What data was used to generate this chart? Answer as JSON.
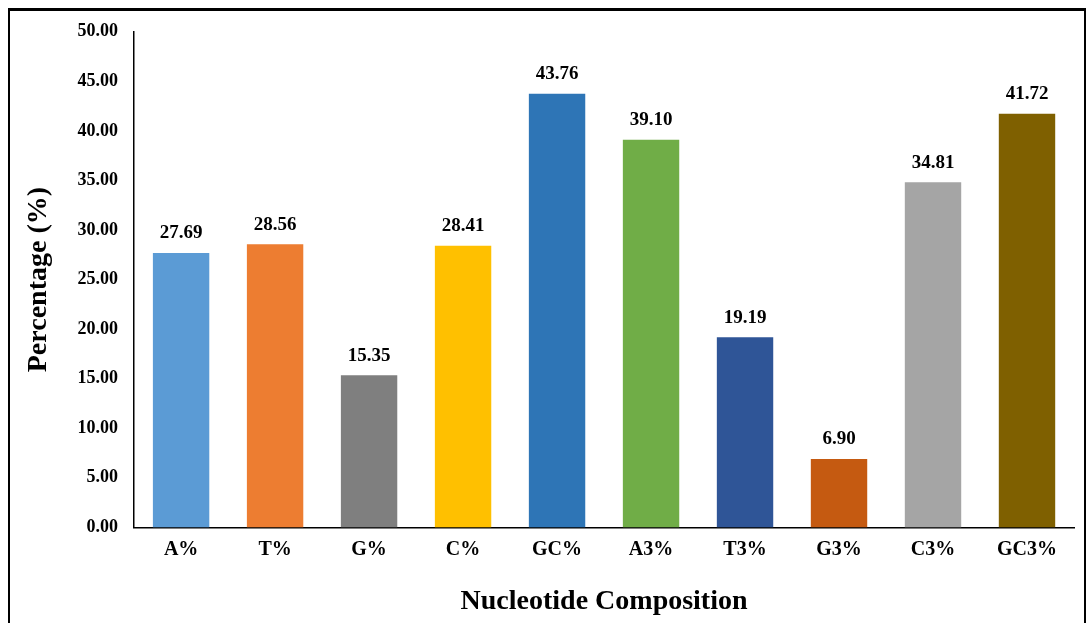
{
  "chart_data": {
    "type": "bar",
    "xlabel": "Nucleotide Composition",
    "ylabel": "Percentage (%)",
    "categories": [
      "A%",
      "T%",
      "G%",
      "C%",
      "GC%",
      "A3%",
      "T3%",
      "G3%",
      "C3%",
      "GC3%"
    ],
    "values": [
      27.69,
      28.56,
      15.35,
      28.41,
      43.76,
      39.1,
      19.19,
      6.9,
      34.81,
      41.72
    ],
    "value_labels": [
      "27.69",
      "28.56",
      "15.35",
      "28.41",
      "43.76",
      "39.10",
      "19.19",
      "6.90",
      "34.81",
      "41.72"
    ],
    "colors": [
      "#5b9bd5",
      "#ed7d31",
      "#7f7f7f",
      "#ffc000",
      "#2e75b6",
      "#70ad47",
      "#2f5597",
      "#c55a11",
      "#a5a5a5",
      "#7f6000"
    ],
    "ylim": [
      0,
      50
    ],
    "yticks": [
      {
        "value": 0,
        "label": "0.00"
      },
      {
        "value": 5,
        "label": "5.00"
      },
      {
        "value": 10,
        "label": "10.00"
      },
      {
        "value": 15,
        "label": "15.00"
      },
      {
        "value": 20,
        "label": "20.00"
      },
      {
        "value": 25,
        "label": "25.00"
      },
      {
        "value": 30,
        "label": "30.00"
      },
      {
        "value": 35,
        "label": "35.00"
      },
      {
        "value": 40,
        "label": "40.00"
      },
      {
        "value": 45,
        "label": "45.00"
      },
      {
        "value": 50,
        "label": "50.00"
      }
    ],
    "grid": false,
    "legend": false
  }
}
